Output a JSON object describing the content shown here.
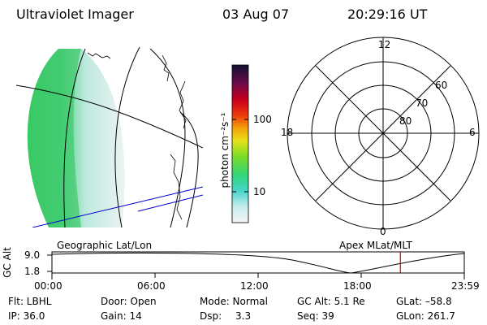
{
  "header": {
    "instrument": "Ultraviolet Imager",
    "date": "03 Aug 07",
    "time": "20:29:16 UT"
  },
  "colorbar": {
    "unit_label": "photon cm⁻²s⁻¹",
    "ticks": [
      "100",
      "10"
    ]
  },
  "polar_plot": {
    "mlt_labels": [
      "12",
      "18",
      "6",
      "0"
    ],
    "lat_labels": [
      "60",
      "70",
      "80"
    ]
  },
  "captions": {
    "left": "Geographic Lat/Lon",
    "right": "Apex MLat/MLT"
  },
  "orbit_plot": {
    "y_axis_label": "GC Alt",
    "y_ticks": [
      "9.0",
      "1.8"
    ],
    "time_ticks": [
      "00:00",
      "06:00",
      "12:00",
      "18:00",
      "23:59"
    ],
    "current_marker_color": "#cc0000",
    "current_position_fraction": 0.845
  },
  "info": {
    "flt": "Flt: LBHL",
    "ip": "IP: 36.0",
    "door": "Door: Open",
    "gain": "Gain: 14",
    "mode": "Mode: Normal",
    "dsp_label": "Dsp:",
    "dsp_value": "3.3",
    "gc_alt": "GC Alt: 5.1 Re",
    "seq": "Seq: 39",
    "glat": "GLat: –58.8",
    "glon": "GLon: 261.7"
  }
}
